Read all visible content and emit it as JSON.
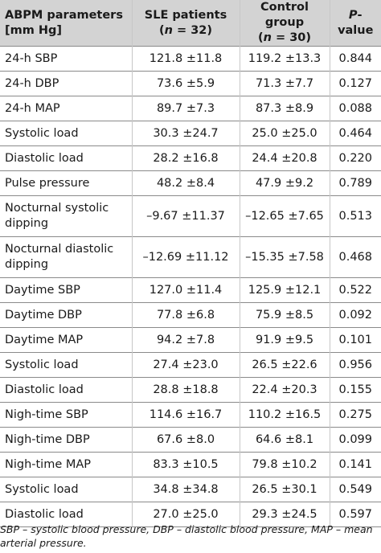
{
  "header": {
    "col1_line1": "ABPM parameters",
    "col1_line2": "[mm Hg]",
    "col2_line1": "SLE patients",
    "col2_n_open": "(",
    "col2_n_letter": "n",
    "col2_n_value": " = 32)",
    "col3_line1": "Control group",
    "col3_n_open": "(",
    "col3_n_letter": "n",
    "col3_n_value": " = 30)",
    "col4_p": "P",
    "col4_rest": "-value"
  },
  "rows": [
    {
      "param": "24-h SBP",
      "sle": "121.8 ±11.8",
      "control": "119.2 ±13.3",
      "p": "0.844"
    },
    {
      "param": "24-h DBP",
      "sle": "73.6 ±5.9",
      "control": "71.3 ±7.7",
      "p": "0.127"
    },
    {
      "param": "24-h MAP",
      "sle": "89.7 ±7.3",
      "control": "87.3 ±8.9",
      "p": "0.088"
    },
    {
      "param": "Systolic load",
      "sle": "30.3 ±24.7",
      "control": "25.0 ±25.0",
      "p": "0.464"
    },
    {
      "param": "Diastolic load",
      "sle": "28.2 ±16.8",
      "control": "24.4 ±20.8",
      "p": "0.220"
    },
    {
      "param": "Pulse pressure",
      "sle": "48.2 ±8.4",
      "control": "47.9 ±9.2",
      "p": "0.789"
    },
    {
      "param_line1": "Nocturnal systolic",
      "param_line2": "dipping",
      "sle": "–9.67 ±11.37",
      "control": "–12.65 ±7.65",
      "p": "0.513"
    },
    {
      "param_line1": "Nocturnal diastolic",
      "param_line2": "dipping",
      "sle": "–12.69 ±11.12",
      "control": "–15.35 ±7.58",
      "p": "0.468"
    },
    {
      "param": "Daytime SBP",
      "sle": "127.0 ±11.4",
      "control": "125.9 ±12.1",
      "p": "0.522"
    },
    {
      "param": "Daytime DBP",
      "sle": "77.8 ±6.8",
      "control": "75.9 ±8.5",
      "p": "0.092"
    },
    {
      "param": "Daytime MAP",
      "sle": "94.2 ±7.8",
      "control": "91.9 ±9.5",
      "p": "0.101"
    },
    {
      "param": "Systolic load",
      "sle": "27.4 ±23.0",
      "control": "26.5 ±22.6",
      "p": "0.956"
    },
    {
      "param": "Diastolic load",
      "sle": "28.8 ±18.8",
      "control": "22.4 ±20.3",
      "p": "0.155"
    },
    {
      "param": "Nigh-time SBP",
      "sle": "114.6 ±16.7",
      "control": "110.2 ±16.5",
      "p": "0.275"
    },
    {
      "param": "Nigh-time DBP",
      "sle": "67.6 ±8.0",
      "control": "64.6 ±8.1",
      "p": "0.099"
    },
    {
      "param": "Nigh-time MAP",
      "sle": "83.3 ±10.5",
      "control": "79.8 ±10.2",
      "p": "0.141"
    },
    {
      "param": "Systolic load",
      "sle": "34.8 ±34.8",
      "control": "26.5 ±30.1",
      "p": "0.549"
    },
    {
      "param": "Diastolic load",
      "sle": "27.0 ±25.0",
      "control": "29.3 ±24.5",
      "p": "0.597"
    }
  ],
  "footnote_line1": "SBP – systolic blood pressure, DBP – diastolic blood pressure, MAP – mean",
  "footnote_line2": "arterial pressure."
}
